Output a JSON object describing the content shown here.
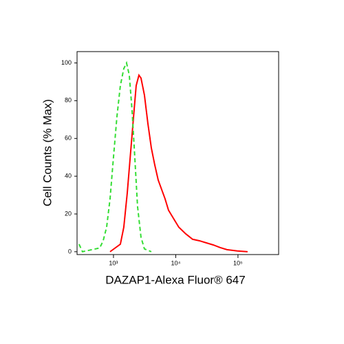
{
  "chart_data": {
    "type": "line",
    "xlabel": "DAZAP1-Alexa Fluor® 647",
    "ylabel": "Cell Counts (% Max)",
    "xscale": "log",
    "xlim": [
      260,
      450000
    ],
    "ylim": [
      -1.5,
      106
    ],
    "xticks": [
      {
        "value": 1000,
        "label": "10³"
      },
      {
        "value": 10000,
        "label": "10⁴"
      },
      {
        "value": 100000,
        "label": "10⁵"
      }
    ],
    "yticks": [
      0,
      20,
      40,
      60,
      80,
      100
    ],
    "series": [
      {
        "color": "#ff0000",
        "dash": false,
        "x": [
          881,
          1290,
          1465,
          1664,
          1889,
          2145,
          2316,
          2564,
          2767,
          3142,
          3568,
          4055,
          4603,
          5226,
          5935,
          6745,
          7656,
          8690,
          11210,
          14460,
          18660,
          24060,
          31050,
          40010,
          51640,
          66530,
          97500,
          142800
        ],
        "values": [
          0,
          4,
          13,
          31,
          53,
          75,
          88,
          93.5,
          92,
          83,
          68,
          55,
          46,
          38,
          33,
          28,
          22,
          19,
          13,
          9.5,
          6.6,
          5.8,
          4.7,
          3.6,
          2.2,
          1.1,
          0.4,
          0
        ]
      },
      {
        "color": "#33dd33",
        "dash": true,
        "x": [
          280,
          318,
          601,
          683,
          776,
          881,
          1000,
          1136,
          1290,
          1465,
          1622,
          1795,
          1988,
          2200,
          2436,
          2767,
          3142,
          4055
        ],
        "values": [
          4,
          0,
          2,
          5.8,
          13,
          28,
          50,
          71.5,
          88,
          97,
          100,
          93.5,
          75,
          50,
          24,
          7.7,
          1.5,
          0
        ]
      }
    ]
  }
}
